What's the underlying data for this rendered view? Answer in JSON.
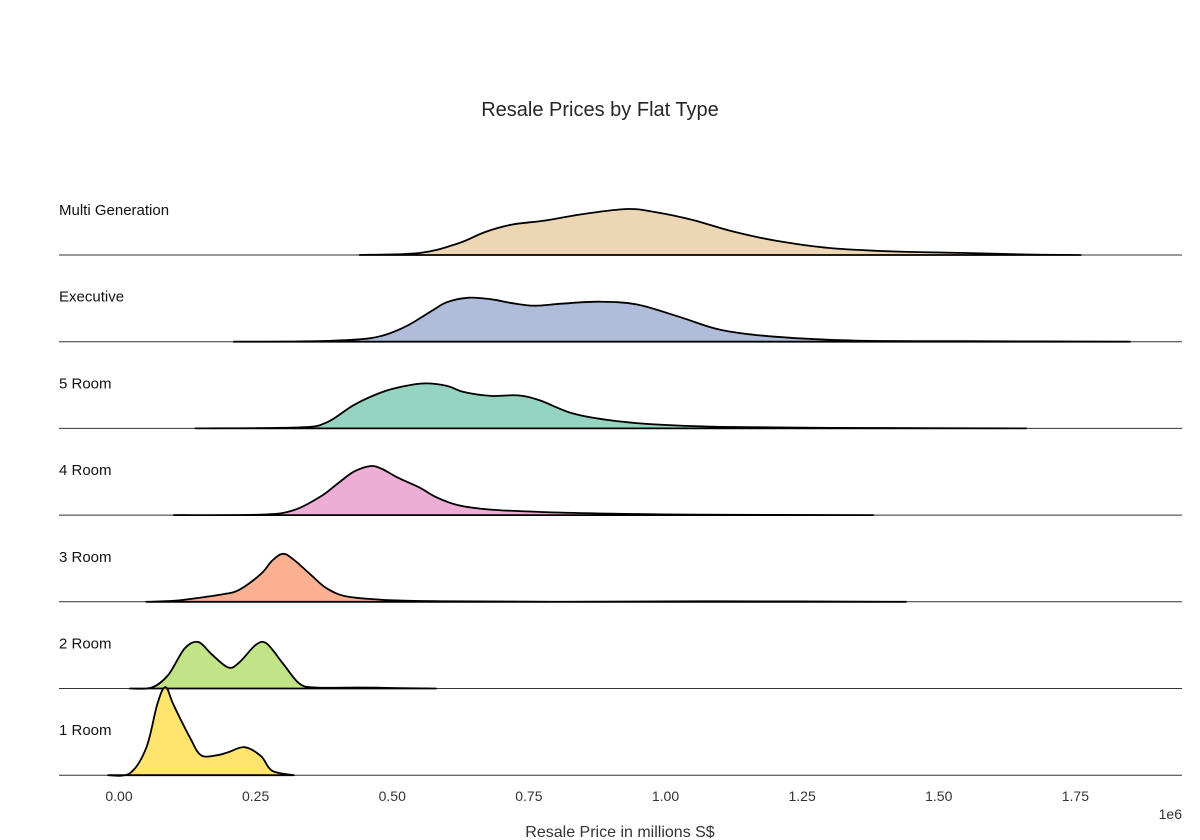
{
  "chart_data": {
    "type": "area",
    "subtype": "ridgeline-kde",
    "title": "Resale Prices by Flat Type",
    "xlabel": "Resale Price in millions S$",
    "x_offset_label": "1e6",
    "xlim": [
      -0.11,
      1.95
    ],
    "x_ticks": [
      0,
      0.25,
      0.5,
      0.75,
      1.0,
      1.25,
      1.5,
      1.75
    ],
    "x_tick_labels": [
      "0.00",
      "0.25",
      "0.50",
      "0.75",
      "1.00",
      "1.25",
      "1.50",
      "1.75"
    ],
    "grid": false,
    "series": [
      {
        "name": "Multi Generation",
        "color": "#e5c494",
        "points": [
          [
            0.44,
            0.0
          ],
          [
            0.55,
            0.04
          ],
          [
            0.62,
            0.23
          ],
          [
            0.67,
            0.46
          ],
          [
            0.72,
            0.61
          ],
          [
            0.78,
            0.69
          ],
          [
            0.85,
            0.82
          ],
          [
            0.93,
            0.92
          ],
          [
            0.98,
            0.86
          ],
          [
            1.05,
            0.7
          ],
          [
            1.12,
            0.48
          ],
          [
            1.2,
            0.29
          ],
          [
            1.3,
            0.14
          ],
          [
            1.42,
            0.07
          ],
          [
            1.55,
            0.04
          ],
          [
            1.66,
            0.01
          ],
          [
            1.76,
            0.0
          ]
        ]
      },
      {
        "name": "Executive",
        "color": "#8da0cb",
        "points": [
          [
            0.21,
            0.0
          ],
          [
            0.36,
            0.01
          ],
          [
            0.46,
            0.07
          ],
          [
            0.52,
            0.28
          ],
          [
            0.57,
            0.6
          ],
          [
            0.6,
            0.79
          ],
          [
            0.64,
            0.88
          ],
          [
            0.68,
            0.85
          ],
          [
            0.72,
            0.77
          ],
          [
            0.76,
            0.72
          ],
          [
            0.81,
            0.76
          ],
          [
            0.88,
            0.8
          ],
          [
            0.95,
            0.74
          ],
          [
            1.03,
            0.48
          ],
          [
            1.1,
            0.24
          ],
          [
            1.2,
            0.1
          ],
          [
            1.35,
            0.02
          ],
          [
            1.55,
            0.01
          ],
          [
            1.85,
            0.0
          ]
        ]
      },
      {
        "name": "5 Room",
        "color": "#66c2a5",
        "points": [
          [
            0.14,
            0.0
          ],
          [
            0.33,
            0.02
          ],
          [
            0.38,
            0.12
          ],
          [
            0.43,
            0.47
          ],
          [
            0.48,
            0.72
          ],
          [
            0.52,
            0.84
          ],
          [
            0.56,
            0.9
          ],
          [
            0.6,
            0.85
          ],
          [
            0.63,
            0.73
          ],
          [
            0.68,
            0.65
          ],
          [
            0.73,
            0.66
          ],
          [
            0.77,
            0.56
          ],
          [
            0.83,
            0.3
          ],
          [
            0.9,
            0.16
          ],
          [
            0.98,
            0.08
          ],
          [
            1.1,
            0.03
          ],
          [
            1.3,
            0.01
          ],
          [
            1.66,
            0.0
          ]
        ]
      },
      {
        "name": "4 Room",
        "color": "#e78ac3",
        "points": [
          [
            0.1,
            0.0
          ],
          [
            0.26,
            0.01
          ],
          [
            0.32,
            0.1
          ],
          [
            0.37,
            0.38
          ],
          [
            0.4,
            0.63
          ],
          [
            0.43,
            0.87
          ],
          [
            0.46,
            0.98
          ],
          [
            0.48,
            0.93
          ],
          [
            0.51,
            0.75
          ],
          [
            0.55,
            0.55
          ],
          [
            0.58,
            0.36
          ],
          [
            0.62,
            0.2
          ],
          [
            0.68,
            0.11
          ],
          [
            0.78,
            0.06
          ],
          [
            0.9,
            0.03
          ],
          [
            1.05,
            0.01
          ],
          [
            1.38,
            0.0
          ]
        ]
      },
      {
        "name": "3 Room",
        "color": "#fc8d62",
        "points": [
          [
            0.05,
            0.0
          ],
          [
            0.1,
            0.02
          ],
          [
            0.14,
            0.07
          ],
          [
            0.19,
            0.15
          ],
          [
            0.22,
            0.24
          ],
          [
            0.26,
            0.56
          ],
          [
            0.28,
            0.82
          ],
          [
            0.3,
            0.96
          ],
          [
            0.32,
            0.84
          ],
          [
            0.35,
            0.55
          ],
          [
            0.38,
            0.27
          ],
          [
            0.42,
            0.1
          ],
          [
            0.5,
            0.03
          ],
          [
            0.6,
            0.01
          ],
          [
            0.8,
            0.0
          ],
          [
            1.1,
            0.01
          ],
          [
            1.44,
            0.0
          ]
        ]
      },
      {
        "name": "2 Room",
        "color": "#a6d854",
        "points": [
          [
            0.02,
            0.0
          ],
          [
            0.06,
            0.02
          ],
          [
            0.09,
            0.27
          ],
          [
            0.12,
            0.8
          ],
          [
            0.145,
            0.93
          ],
          [
            0.17,
            0.68
          ],
          [
            0.2,
            0.42
          ],
          [
            0.22,
            0.52
          ],
          [
            0.25,
            0.87
          ],
          [
            0.27,
            0.9
          ],
          [
            0.3,
            0.5
          ],
          [
            0.33,
            0.1
          ],
          [
            0.36,
            0.02
          ],
          [
            0.44,
            0.02
          ],
          [
            0.5,
            0.01
          ],
          [
            0.58,
            0.0
          ]
        ]
      },
      {
        "name": "1 Room",
        "color": "#ffd92f",
        "points": [
          [
            -0.02,
            0.0
          ],
          [
            0.02,
            0.04
          ],
          [
            0.05,
            0.55
          ],
          [
            0.07,
            1.42
          ],
          [
            0.085,
            1.76
          ],
          [
            0.1,
            1.4
          ],
          [
            0.13,
            0.75
          ],
          [
            0.15,
            0.4
          ],
          [
            0.18,
            0.4
          ],
          [
            0.2,
            0.46
          ],
          [
            0.23,
            0.56
          ],
          [
            0.26,
            0.38
          ],
          [
            0.28,
            0.09
          ],
          [
            0.32,
            0.0
          ]
        ]
      }
    ]
  }
}
